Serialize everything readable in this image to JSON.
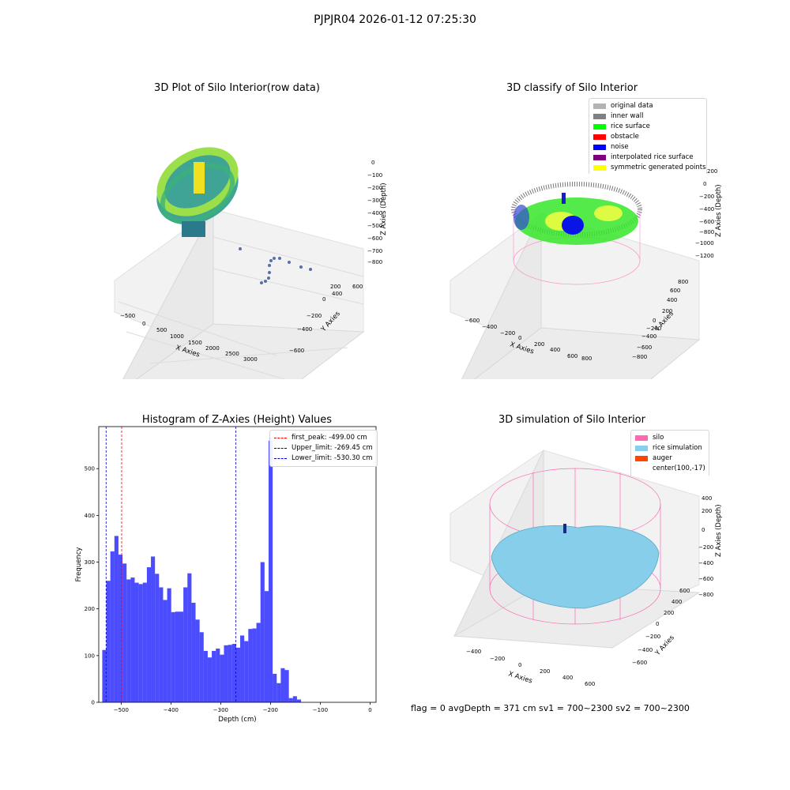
{
  "figure": {
    "suptitle": "PJPJR04 2026-01-12 07:25:30",
    "status_text": "flag = 0     avgDepth = 371 cm  sv1 = 700~2300  sv2 = 700~2300"
  },
  "panels": {
    "raw": {
      "title": "3D Plot of Silo Interior(row data)",
      "xlabel": "X Axies",
      "ylabel": "Y Axies",
      "zlabel": "Z Axies (Depth)",
      "xticks": [
        "−500",
        "0",
        "500",
        "1000",
        "1500",
        "2000",
        "2500",
        "3000"
      ],
      "yticks": [
        "−600",
        "−400",
        "−200",
        "0",
        "200",
        "400",
        "600"
      ],
      "zticks": [
        "0",
        "−100",
        "−200",
        "−300",
        "−400",
        "−500",
        "−600",
        "−700",
        "−800"
      ]
    },
    "classify": {
      "title": "3D classify of Silo Interior",
      "xlabel": "X Axies",
      "ylabel": "Y Axies",
      "zlabel": "Z Axies (Depth)",
      "xticks": [
        "−600",
        "−400",
        "−200",
        "0",
        "200",
        "400",
        "600",
        "800"
      ],
      "yticks": [
        "−800",
        "−600",
        "−400",
        "−200",
        "0",
        "200",
        "400",
        "600",
        "800"
      ],
      "zticks": [
        "200",
        "0",
        "−200",
        "−400",
        "−600",
        "−800",
        "−1000",
        "−1200"
      ],
      "legend": [
        {
          "label": "original data",
          "color": "#b3b3b3"
        },
        {
          "label": "inner wall",
          "color": "#808080"
        },
        {
          "label": "rice surface",
          "color": "#00ff00"
        },
        {
          "label": "obstacle",
          "color": "#ff0000"
        },
        {
          "label": "noise",
          "color": "#0000ff"
        },
        {
          "label": "interpolated rice surface",
          "color": "#800080"
        },
        {
          "label": "symmetric generated points",
          "color": "#ffff00"
        }
      ]
    },
    "simulation": {
      "title": "3D simulation of Silo Interior",
      "xlabel": "X Axies",
      "ylabel": "Y Axies",
      "zlabel": "Z Axies (Depth)",
      "xticks": [
        "−400",
        "−200",
        "0",
        "200",
        "400",
        "600"
      ],
      "yticks": [
        "−600",
        "−400",
        "−200",
        "0",
        "200",
        "400",
        "600"
      ],
      "zticks": [
        "400",
        "200",
        "0",
        "−200",
        "−400",
        "−600",
        "−800"
      ],
      "legend": [
        {
          "label": "silo",
          "color": "#ff69b4"
        },
        {
          "label": "rice simulation",
          "color": "#87ceeb"
        },
        {
          "label": "auger",
          "color": "#ff4500"
        },
        {
          "label": "center(100,-17)",
          "color": ""
        }
      ]
    }
  },
  "chart_data": {
    "type": "bar",
    "title": "Histogram of Z-Axies (Height) Values",
    "xlabel": "Depth (cm)",
    "ylabel": "Frequency",
    "bar_color": "#0000ff",
    "xlim": [
      -545,
      12
    ],
    "ylim": [
      0,
      590
    ],
    "xticks": [
      -500,
      -400,
      -300,
      -200,
      -100,
      0
    ],
    "xtick_labels": [
      "−500",
      "−400",
      "−300",
      "−200",
      "−100",
      "0"
    ],
    "yticks": [
      0,
      100,
      200,
      300,
      400,
      500
    ],
    "yticks_labels": [
      "0",
      "100",
      "200",
      "300",
      "400",
      "500"
    ],
    "bin_start": -538,
    "bin_width": 8.15,
    "values": [
      112,
      260,
      323,
      356,
      316,
      297,
      263,
      267,
      256,
      253,
      256,
      289,
      312,
      275,
      246,
      219,
      244,
      193,
      194,
      194,
      246,
      276,
      213,
      177,
      150,
      110,
      96,
      110,
      115,
      102,
      122,
      123,
      125,
      117,
      143,
      131,
      157,
      158,
      170,
      300,
      238,
      560,
      61,
      41,
      73,
      69,
      9,
      13,
      6
    ],
    "vlines": [
      {
        "label": "first_peak: -499.00 cm",
        "x": -499.0,
        "color": "#ff0000"
      },
      {
        "label": "Upper_limit: -269.45 cm",
        "x": -269.45,
        "color": "#0000cc"
      },
      {
        "label": "Lower_limit: -530.30 cm",
        "x": -530.3,
        "color": "#0000cc"
      }
    ]
  }
}
